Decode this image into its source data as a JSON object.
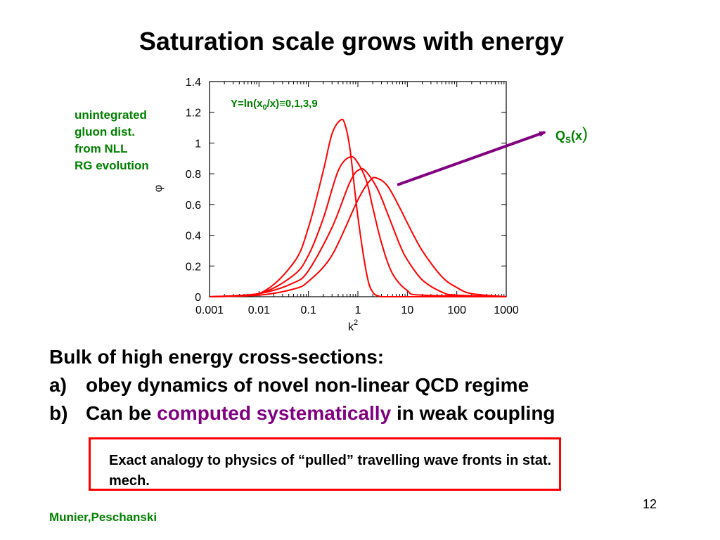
{
  "slide": {
    "title": "Saturation scale grows with energy",
    "side_note": [
      "unintegrated",
      "gluon dist.",
      "from NLL",
      "RG evolution"
    ],
    "bullets": {
      "heading": "Bulk of high energy cross-sections:",
      "items": [
        {
          "marker": "a)",
          "parts": [
            {
              "text": "obey dynamics of novel non-linear QCD regime",
              "highlight": false
            }
          ]
        },
        {
          "marker": "b)",
          "parts": [
            {
              "text": "Can be ",
              "highlight": false
            },
            {
              "text": "computed systematically",
              "highlight": true
            },
            {
              "text": " in weak coupling",
              "highlight": false
            }
          ]
        }
      ]
    },
    "box_text": "Exact analogy to physics of “pulled” travelling wave fronts in stat. mech.",
    "page_number": "12",
    "footer": "Munier,Peschanski"
  },
  "colors": {
    "curve": "#ff0000",
    "annotation_green": "#008000",
    "arrow_purple": "#800080",
    "highlight_purple": "#800080",
    "box_border": "#ff0000"
  },
  "chart_data": {
    "type": "line",
    "title": "",
    "xlabel": "k",
    "xlabel_sup": "2",
    "ylabel": "φ",
    "xscale": "log",
    "xlim": [
      0.001,
      1000
    ],
    "ylim": [
      0,
      1.4
    ],
    "x_ticks": [
      0.001,
      0.01,
      0.1,
      1,
      10,
      100,
      1000
    ],
    "x_tick_labels": [
      "0.001",
      "0.01",
      "0.1",
      "1",
      "10",
      "100",
      "1000"
    ],
    "y_ticks": [
      0,
      0.2,
      0.4,
      0.6,
      0.8,
      1,
      1.2,
      1.4
    ],
    "y_tick_labels": [
      "0",
      "0.2",
      "0.4",
      "0.6",
      "0.8",
      "1",
      "1.2",
      "1.4"
    ],
    "grid": false,
    "annotation": {
      "prefix": "Y=ln(x",
      "sub": "0",
      "suffix": "/x)≡0,1,3,9"
    },
    "qs_label": {
      "q": "Q",
      "sub": "S",
      "rest": "(x",
      "paren": ")"
    },
    "series": [
      {
        "x": [
          0.001,
          0.01,
          0.05,
          0.1,
          0.2,
          0.3,
          0.45,
          0.55,
          0.7,
          1,
          1.5,
          2,
          3,
          5,
          1000
        ],
        "y": [
          0.0,
          0.02,
          0.22,
          0.45,
          0.82,
          1.06,
          1.15,
          1.12,
          0.95,
          0.52,
          0.15,
          0.03,
          0.0,
          0.0,
          0.0
        ]
      },
      {
        "x": [
          0.001,
          0.01,
          0.05,
          0.1,
          0.2,
          0.4,
          0.7,
          1,
          1.5,
          2,
          3,
          5,
          10,
          20,
          1000
        ],
        "y": [
          0.0,
          0.02,
          0.14,
          0.27,
          0.51,
          0.82,
          0.91,
          0.87,
          0.75,
          0.58,
          0.35,
          0.15,
          0.04,
          0.01,
          0.0
        ]
      },
      {
        "x": [
          0.001,
          0.01,
          0.05,
          0.1,
          0.3,
          0.7,
          1.1,
          1.5,
          2.5,
          4,
          7,
          10,
          20,
          50,
          100,
          1000
        ],
        "y": [
          0.0,
          0.02,
          0.09,
          0.17,
          0.45,
          0.75,
          0.83,
          0.81,
          0.7,
          0.54,
          0.34,
          0.24,
          0.11,
          0.03,
          0.01,
          0.0
        ]
      },
      {
        "x": [
          0.001,
          0.01,
          0.05,
          0.1,
          0.3,
          1,
          1.8,
          2.5,
          4,
          7,
          10,
          20,
          50,
          100,
          200,
          1000
        ],
        "y": [
          0.0,
          0.01,
          0.05,
          0.1,
          0.27,
          0.63,
          0.76,
          0.77,
          0.72,
          0.58,
          0.48,
          0.3,
          0.13,
          0.06,
          0.02,
          0.0
        ]
      }
    ]
  }
}
